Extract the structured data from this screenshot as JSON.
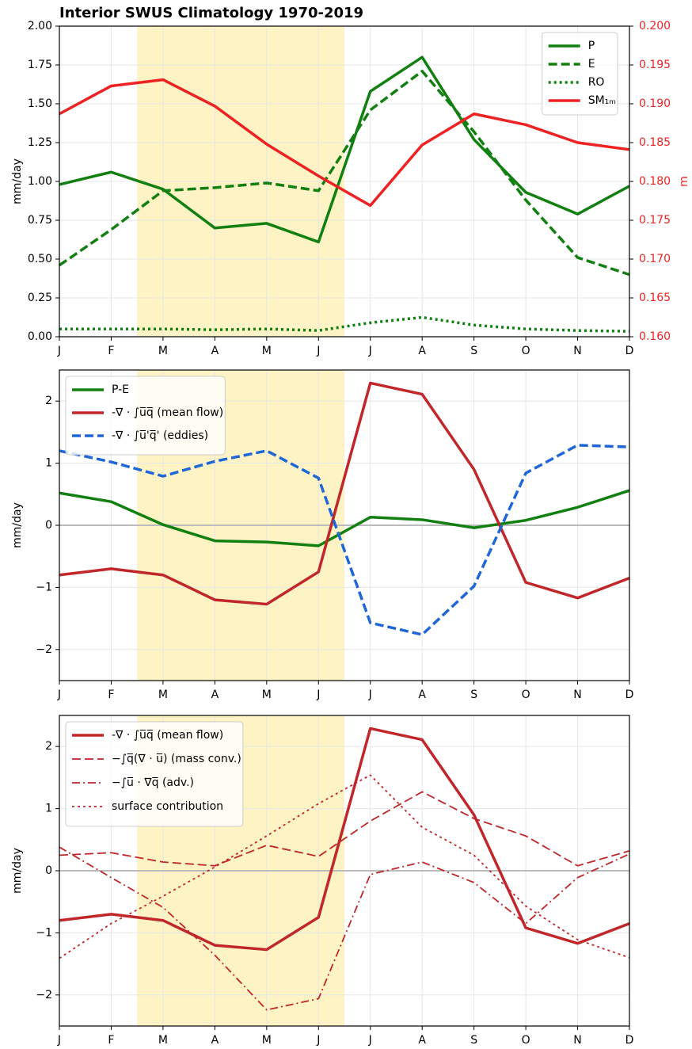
{
  "chart_data": [
    {
      "type": "line",
      "title": "Interior SWUS Climatology 1970-2019",
      "ylabel": "mm/day",
      "y2label": "m",
      "y2color": "#ee2222",
      "categories": [
        "J",
        "F",
        "M",
        "A",
        "M",
        "J",
        "J",
        "A",
        "S",
        "O",
        "N",
        "D"
      ],
      "ylim": [
        0,
        2
      ],
      "yticks": [
        {
          "value": 0,
          "label": "0.00"
        },
        {
          "value": 0.25,
          "label": "0.25"
        },
        {
          "value": 0.5,
          "label": "0.50"
        },
        {
          "value": 0.75,
          "label": "0.75"
        },
        {
          "value": 1,
          "label": "1.00"
        },
        {
          "value": 1.25,
          "label": "1.25"
        },
        {
          "value": 1.5,
          "label": "1.50"
        },
        {
          "value": 1.75,
          "label": "1.75"
        },
        {
          "value": 2,
          "label": "2.00"
        }
      ],
      "y2lim": [
        0.16,
        0.2
      ],
      "y2ticks": [
        {
          "value": 0.16,
          "label": "0.160"
        },
        {
          "value": 0.165,
          "label": "0.165"
        },
        {
          "value": 0.17,
          "label": "0.170"
        },
        {
          "value": 0.175,
          "label": "0.175"
        },
        {
          "value": 0.18,
          "label": "0.180"
        },
        {
          "value": 0.185,
          "label": "0.185"
        },
        {
          "value": 0.19,
          "label": "0.190"
        },
        {
          "value": 0.195,
          "label": "0.195"
        },
        {
          "value": 0.2,
          "label": "0.200"
        }
      ],
      "grid": true,
      "legend": "upper right",
      "shade": {
        "from": 1.5,
        "to": 5.5,
        "color": "#fdf3c4"
      },
      "series": [
        {
          "name": "P",
          "color": "#118011",
          "dash": "solid",
          "width": 3.5,
          "values": [
            0.98,
            1.06,
            0.95,
            0.7,
            0.73,
            0.61,
            1.58,
            1.8,
            1.27,
            0.93,
            0.79,
            0.97
          ]
        },
        {
          "name": "E",
          "color": "#118011",
          "dash": "dashed",
          "width": 3.5,
          "values": [
            0.46,
            0.69,
            0.94,
            0.96,
            0.99,
            0.94,
            1.46,
            1.71,
            1.32,
            0.88,
            0.51,
            0.4
          ]
        },
        {
          "name": "RO",
          "color": "#118011",
          "dash": "dotted",
          "width": 3.5,
          "values": [
            0.05,
            0.05,
            0.05,
            0.045,
            0.05,
            0.04,
            0.09,
            0.125,
            0.075,
            0.05,
            0.04,
            0.035
          ]
        },
        {
          "name": "SM₁ₘ",
          "color": "#ee2222",
          "dash": "solid",
          "width": 3.5,
          "axis": "y2",
          "values": [
            0.1887,
            0.1923,
            0.1931,
            0.1897,
            0.1848,
            0.1807,
            0.1769,
            0.1847,
            0.1887,
            0.1873,
            0.185,
            0.1841
          ]
        }
      ]
    },
    {
      "type": "line",
      "ylabel": "mm/day",
      "categories": [
        "J",
        "F",
        "M",
        "A",
        "M",
        "J",
        "J",
        "A",
        "S",
        "O",
        "N",
        "D"
      ],
      "ylim": [
        -2.5,
        2.5
      ],
      "yticks": [
        {
          "value": -2,
          "label": "−2"
        },
        {
          "value": -1,
          "label": "−1"
        },
        0,
        1,
        2
      ],
      "grid": true,
      "hline": 0,
      "legend": "upper left",
      "shade": {
        "from": 1.5,
        "to": 5.5,
        "color": "#fdf3c4"
      },
      "series": [
        {
          "name": "P-E",
          "color": "#118011",
          "dash": "solid",
          "width": 3.5,
          "values": [
            0.52,
            0.38,
            0.01,
            -0.25,
            -0.27,
            -0.33,
            0.13,
            0.09,
            -0.04,
            0.08,
            0.29,
            0.56
          ]
        },
        {
          "name": "-∇ · ∫u̅q̅  (mean flow)",
          "color": "#c0262a",
          "dash": "solid",
          "width": 3.5,
          "values": [
            -0.8,
            -0.7,
            -0.8,
            -1.2,
            -1.27,
            -0.75,
            2.29,
            2.11,
            0.9,
            -0.92,
            -1.17,
            -0.85
          ]
        },
        {
          "name": "-∇ · ∫u̅'q̅'  (eddies)",
          "color": "#1f66d6",
          "dash": "dashed",
          "width": 3.5,
          "values": [
            1.2,
            1.02,
            0.79,
            1.03,
            1.2,
            0.76,
            -1.57,
            -1.76,
            -0.98,
            0.84,
            1.29,
            1.26
          ]
        }
      ]
    },
    {
      "type": "line",
      "ylabel": "mm/day",
      "categories": [
        "J",
        "F",
        "M",
        "A",
        "M",
        "J",
        "J",
        "A",
        "S",
        "O",
        "N",
        "D"
      ],
      "ylim": [
        -2.5,
        2.5
      ],
      "yticks": [
        {
          "value": -2,
          "label": "−2"
        },
        {
          "value": -1,
          "label": "−1"
        },
        0,
        1,
        2
      ],
      "grid": true,
      "hline": 0,
      "legend": "upper left",
      "shade": {
        "from": 1.5,
        "to": 5.5,
        "color": "#fdf3c4"
      },
      "series": [
        {
          "name": "-∇ · ∫u̅q̅  (mean flow)",
          "color": "#c0262a",
          "dash": "solid",
          "width": 3.5,
          "values": [
            -0.8,
            -0.7,
            -0.8,
            -1.2,
            -1.27,
            -0.75,
            2.29,
            2.11,
            0.9,
            -0.92,
            -1.17,
            -0.85
          ]
        },
        {
          "name": "−∫q̅(∇ · u̅)  (mass conv.)",
          "color": "#c0262a",
          "dash": "dashed",
          "width": 1.8,
          "values": [
            0.25,
            0.29,
            0.14,
            0.08,
            0.41,
            0.23,
            0.8,
            1.27,
            0.84,
            0.56,
            0.08,
            0.32
          ]
        },
        {
          "name": "−∫u̅ · ∇q̅  (adv.)",
          "color": "#c0262a",
          "dash": "dashdot",
          "width": 1.8,
          "values": [
            0.38,
            -0.11,
            -0.59,
            -1.36,
            -2.24,
            -2.06,
            -0.06,
            0.14,
            -0.19,
            -0.85,
            -0.11,
            0.27
          ]
        },
        {
          "name": "surface contribution",
          "color": "#c0262a",
          "dash": "dotted",
          "width": 1.8,
          "values": [
            -1.41,
            -0.85,
            -0.41,
            0.06,
            0.56,
            1.08,
            1.54,
            0.7,
            0.25,
            -0.57,
            -1.11,
            -1.4
          ]
        }
      ]
    }
  ]
}
